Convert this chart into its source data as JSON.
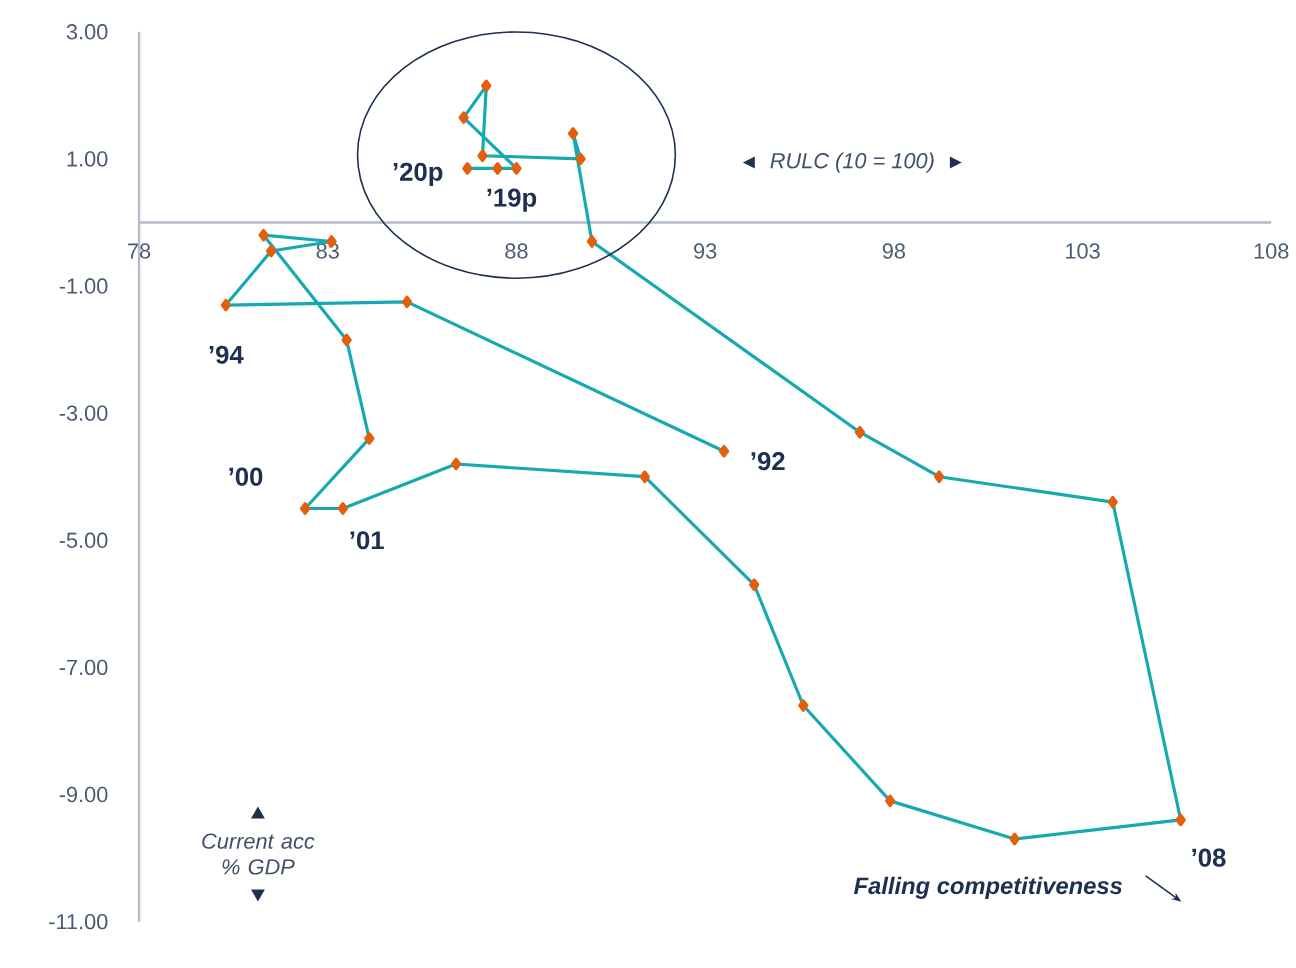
{
  "chart_data": {
    "type": "line",
    "xlabel": "RULC (10 = 100)",
    "ylabel": "Current acc % GDP",
    "xlim": [
      78,
      108
    ],
    "xticks": [
      78,
      83,
      88,
      93,
      98,
      103,
      108
    ],
    "ylim": [
      -11,
      3
    ],
    "yticks": [
      {
        "value": 3,
        "label": "3.00"
      },
      {
        "value": 1,
        "label": "1.00"
      },
      {
        "value": -1,
        "label": "-1.00"
      },
      {
        "value": -3,
        "label": "-3.00"
      },
      {
        "value": -5,
        "label": "-5.00"
      },
      {
        "value": -7,
        "label": "-7.00"
      },
      {
        "value": -9,
        "label": "-9.00"
      },
      {
        "value": -11,
        "label": "-11.00"
      }
    ],
    "marker": "diamond",
    "line_style": "solid",
    "grid": false,
    "series": [
      {
        "color": "#17a9b1",
        "x": [
          93.5,
          85.1,
          80.3,
          81.5,
          83.1,
          81.3,
          83.5,
          84.1,
          82.4,
          83.4,
          86.4,
          91.4,
          94.3,
          95.6,
          97.9,
          101.2,
          105.6,
          103.8,
          99.2,
          97.1,
          90.0,
          89.5,
          89.7,
          87.1,
          87.2,
          86.6,
          88.0,
          87.5,
          86.7
        ],
        "values": [
          -3.6,
          -1.25,
          -1.3,
          -0.45,
          -0.3,
          -0.2,
          -1.85,
          -3.4,
          -4.5,
          -4.5,
          -3.8,
          -4.0,
          -5.7,
          -7.6,
          -9.1,
          -9.7,
          -9.4,
          -4.4,
          -4.0,
          -3.3,
          -0.3,
          1.4,
          1.0,
          1.05,
          2.15,
          1.65,
          0.85,
          0.85,
          0.85
        ]
      }
    ],
    "annotations": [
      {
        "text": "’92",
        "x": 93.5,
        "y": -3.6
      },
      {
        "text": "’94",
        "x": 80.3,
        "y": -1.3
      },
      {
        "text": "’00",
        "x": 82.4,
        "y": -4.5
      },
      {
        "text": "’01",
        "x": 83.4,
        "y": -4.5
      },
      {
        "text": "’08",
        "x": 105.6,
        "y": -9.4
      },
      {
        "text": "’19p",
        "x": 87.5,
        "y": 0.85
      },
      {
        "text": "’20p",
        "x": 86.7,
        "y": 0.85
      },
      "Falling competitiveness"
    ]
  }
}
